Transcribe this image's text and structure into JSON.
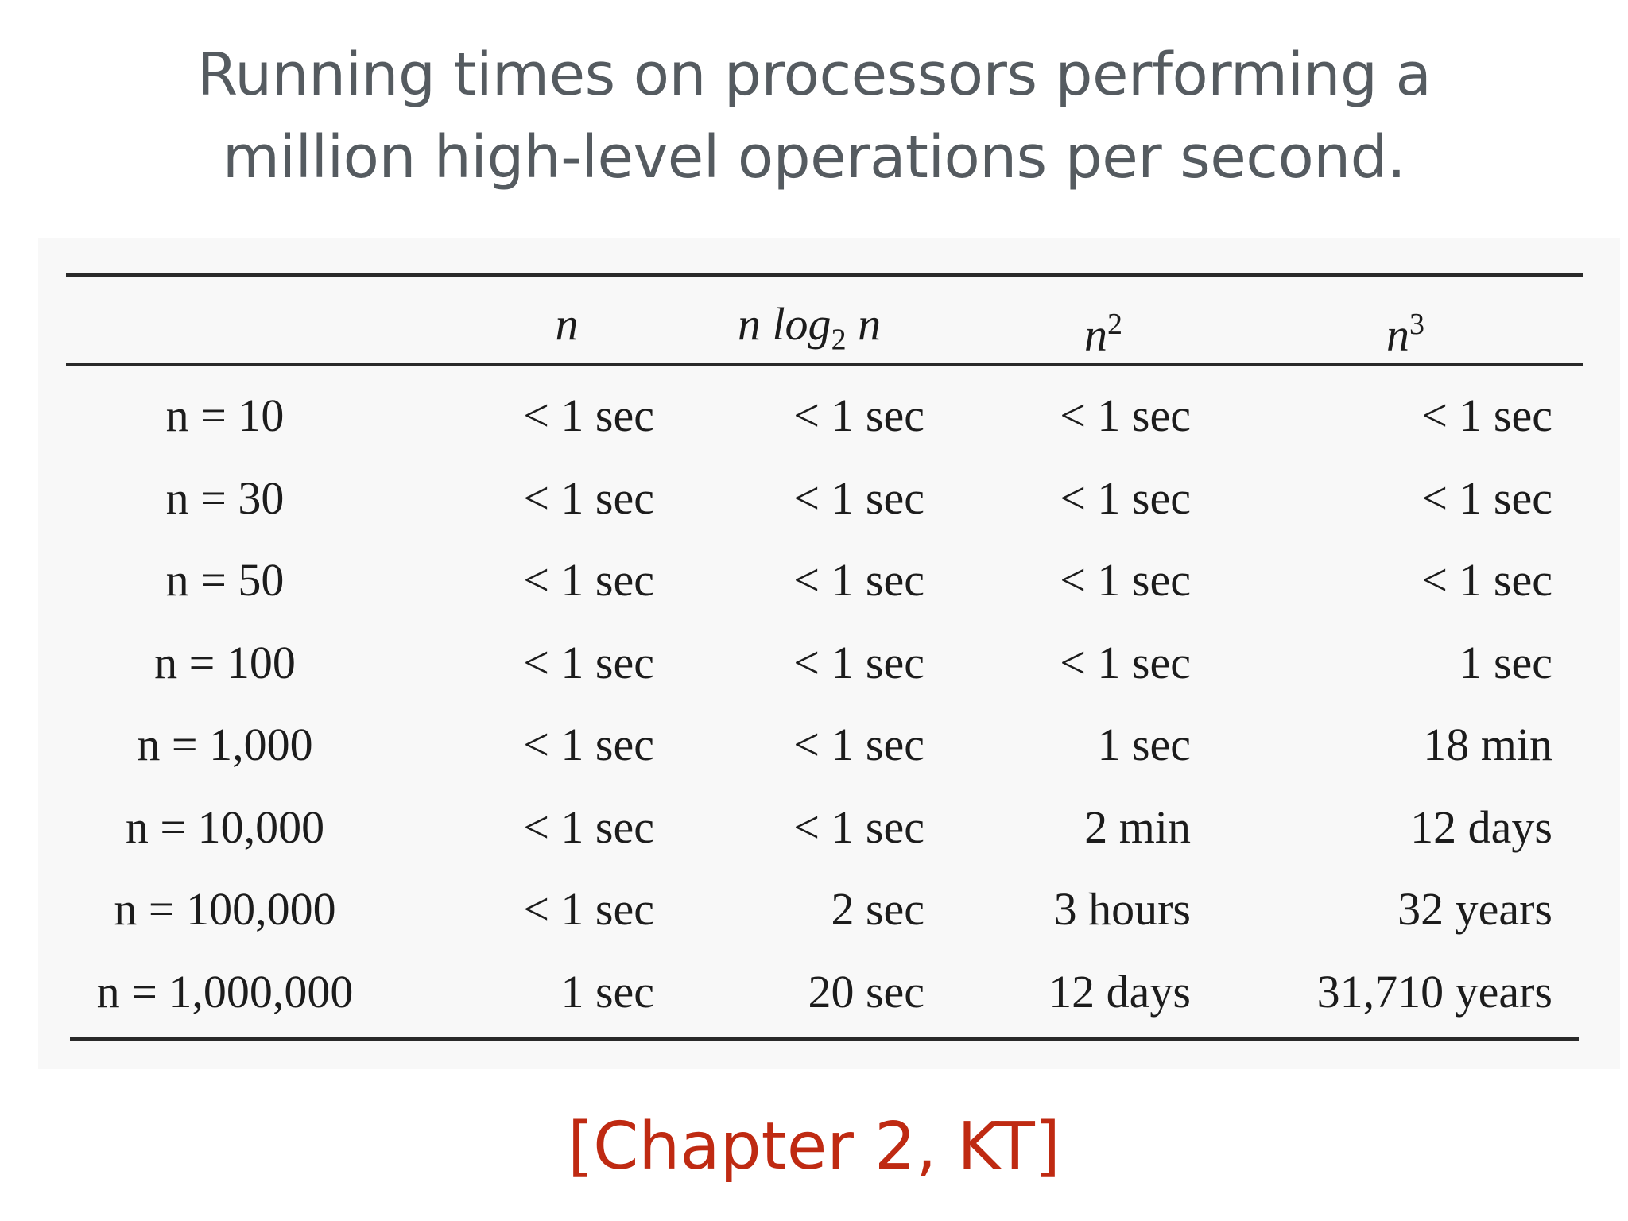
{
  "title": {
    "line1": "Running times on processors performing a",
    "line2": "million high-level operations per second."
  },
  "table": {
    "headers": [
      {
        "base": "",
        "sub": "",
        "sup": ""
      },
      {
        "base": "n",
        "sub": "",
        "sup": ""
      },
      {
        "base": "n log",
        "sub": "2",
        "after": " n",
        "sup": ""
      },
      {
        "base": "n",
        "sub": "",
        "sup": "2"
      },
      {
        "base": "n",
        "sub": "",
        "sup": "3"
      }
    ],
    "rows": [
      [
        "n = 10",
        "< 1 sec",
        "< 1 sec",
        "< 1 sec",
        "< 1 sec"
      ],
      [
        "n = 30",
        "< 1 sec",
        "< 1 sec",
        "< 1 sec",
        "< 1 sec"
      ],
      [
        "n = 50",
        "< 1 sec",
        "< 1 sec",
        "< 1 sec",
        "< 1 sec"
      ],
      [
        "n = 100",
        "< 1 sec",
        "< 1 sec",
        "< 1 sec",
        "1 sec"
      ],
      [
        "n = 1,000",
        "< 1 sec",
        "< 1 sec",
        "1 sec",
        "18 min"
      ],
      [
        "n = 10,000",
        "< 1 sec",
        "< 1 sec",
        "2 min",
        "12 days"
      ],
      [
        "n = 100,000",
        "< 1 sec",
        "2 sec",
        "3 hours",
        "32 years"
      ],
      [
        "n = 1,000,000",
        "1 sec",
        "20 sec",
        "12 days",
        "31,710 years"
      ]
    ]
  },
  "citation": "[Chapter 2, KT]",
  "colors": {
    "title": "#555b60",
    "citation": "#bf2a12",
    "table_text": "#1c1c1c"
  }
}
